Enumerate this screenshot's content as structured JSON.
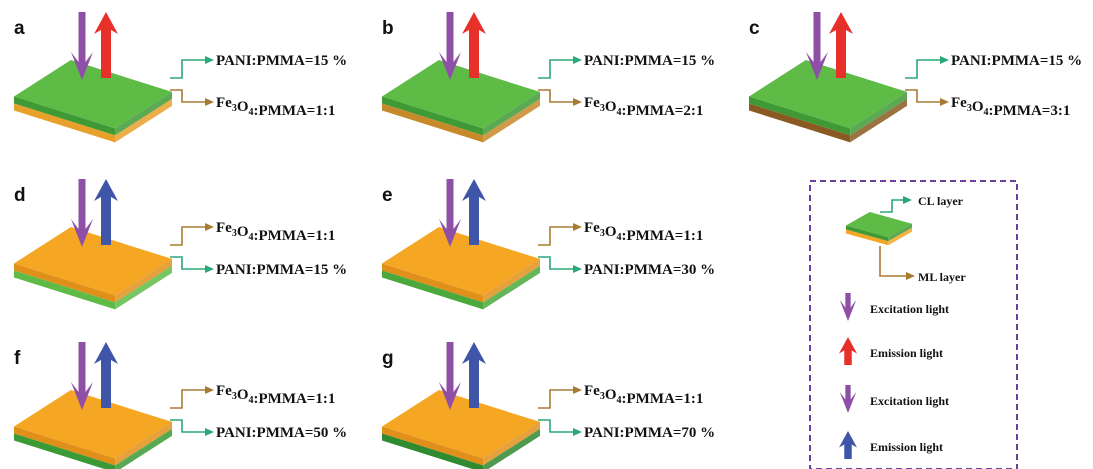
{
  "colors": {
    "green_top": "#5dbb46",
    "green_dark": "#2f8f3a",
    "orange_top": "#f5a623",
    "orange_dark": "#c47a12",
    "excitation": "#8e4fa6",
    "emission_red": "#e8302a",
    "emission_blue": "#3f56a8",
    "cl_line": "#2aa876",
    "ml_line": "#a87b34",
    "legend_border": "#6a3fa0"
  },
  "panels": [
    {
      "id": "a",
      "label": "a",
      "upper_text": "PANI:PMMA=15 %",
      "lower_text": "Fe₃O₄:PMMA=1:1",
      "top_layer": "CL",
      "emission": "red",
      "base_variant": 1
    },
    {
      "id": "b",
      "label": "b",
      "upper_text": "PANI:PMMA=15 %",
      "lower_text": "Fe₃O₄:PMMA=2:1",
      "top_layer": "CL",
      "emission": "red",
      "base_variant": 2
    },
    {
      "id": "c",
      "label": "c",
      "upper_text": "PANI:PMMA=15 %",
      "lower_text": "Fe₃O₄:PMMA=3:1",
      "top_layer": "CL",
      "emission": "red",
      "base_variant": 3
    },
    {
      "id": "d",
      "label": "d",
      "upper_text": "Fe₃O₄:PMMA=1:1",
      "lower_text": "PANI:PMMA=15 %",
      "top_layer": "ML",
      "emission": "blue",
      "base_variant": 1
    },
    {
      "id": "e",
      "label": "e",
      "upper_text": "Fe₃O₄:PMMA=1:1",
      "lower_text": "PANI:PMMA=30 %",
      "top_layer": "ML",
      "emission": "blue",
      "base_variant": 2
    },
    {
      "id": "f",
      "label": "f",
      "upper_text": "Fe₃O₄:PMMA=1:1",
      "lower_text": "PANI:PMMA=50 %",
      "top_layer": "ML",
      "emission": "blue",
      "base_variant": 3
    },
    {
      "id": "g",
      "label": "g",
      "upper_text": "Fe₃O₄:PMMA=1:1",
      "lower_text": "PANI:PMMA=70 %",
      "top_layer": "ML",
      "emission": "blue",
      "base_variant": 4
    }
  ],
  "legend": {
    "cl_layer": "CL layer",
    "ml_layer": "ML layer",
    "items": [
      {
        "label": "Excitation light",
        "icon": "arrow-down",
        "color": "excitation"
      },
      {
        "label": "Emission light",
        "icon": "arrow-up",
        "color": "emission_red"
      },
      {
        "label": "Excitation light",
        "icon": "arrow-down",
        "color": "excitation"
      },
      {
        "label": "Emission light",
        "icon": "arrow-up",
        "color": "emission_blue"
      }
    ]
  }
}
